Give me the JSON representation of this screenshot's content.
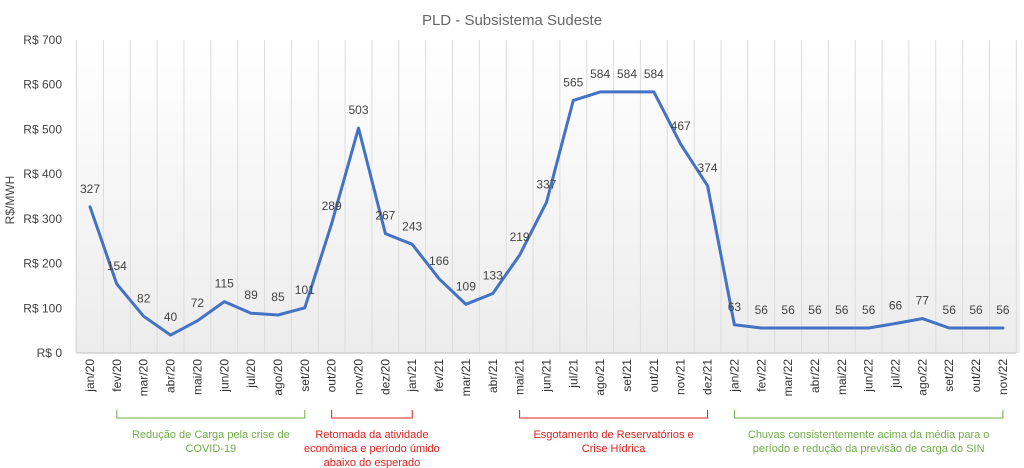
{
  "chart_data": {
    "type": "line",
    "title": "PLD - Subsistema Sudeste",
    "ylabel": "R$/MWH",
    "xlabel": "",
    "ylim": [
      0,
      700
    ],
    "yticks": [
      {
        "value": 0,
        "label": "R$ 0"
      },
      {
        "value": 100,
        "label": "R$ 100"
      },
      {
        "value": 200,
        "label": "R$ 200"
      },
      {
        "value": 300,
        "label": "R$ 300"
      },
      {
        "value": 400,
        "label": "R$ 400"
      },
      {
        "value": 500,
        "label": "R$ 500"
      },
      {
        "value": 600,
        "label": "R$ 600"
      },
      {
        "value": 700,
        "label": "R$ 700"
      }
    ],
    "grid": "vertical",
    "line_color": "#4472C4",
    "categories": [
      "jan/20",
      "fev/20",
      "mar/20",
      "abr/20",
      "mai/20",
      "jun/20",
      "jul/20",
      "ago/20",
      "set/20",
      "out/20",
      "nov/20",
      "dez/20",
      "jan/21",
      "fev/21",
      "mar/21",
      "abr/21",
      "mai/21",
      "jun/21",
      "jul/21",
      "ago/21",
      "set/21",
      "out/21",
      "nov/21",
      "dez/21",
      "jan/22",
      "fev/22",
      "mar/22",
      "abr/22",
      "mai/22",
      "jun/22",
      "jul/22",
      "ago/22",
      "set/22",
      "out/22",
      "nov/22"
    ],
    "series": [
      {
        "values": [
          327,
          154,
          82,
          40,
          72,
          115,
          89,
          85,
          101,
          289,
          503,
          267,
          243,
          166,
          109,
          133,
          219,
          337,
          565,
          584,
          584,
          584,
          467,
          374,
          63,
          56,
          56,
          56,
          56,
          56,
          66,
          77,
          56,
          56,
          56
        ]
      }
    ],
    "annotations": [
      {
        "text_lines": [
          "Redução de Carga pela crise de",
          "COVID-19"
        ],
        "from": 1,
        "to": 8,
        "color": "#70AD47"
      },
      {
        "text_lines": [
          "Retomada da atividade",
          "econômica e período úmido",
          "abaixo do esperado"
        ],
        "from": 9,
        "to": 12,
        "color": "#E0201C"
      },
      {
        "text_lines": [
          "Esgotamento de Reservatórios e",
          "Crise Hídrica"
        ],
        "from": 16,
        "to": 23,
        "color": "#E0201C"
      },
      {
        "text_lines": [
          "Chuvas consistentemente acima da média para o",
          "período e redução da previsão de carga do SIN"
        ],
        "from": 24,
        "to": 34,
        "color": "#70AD47"
      }
    ]
  }
}
